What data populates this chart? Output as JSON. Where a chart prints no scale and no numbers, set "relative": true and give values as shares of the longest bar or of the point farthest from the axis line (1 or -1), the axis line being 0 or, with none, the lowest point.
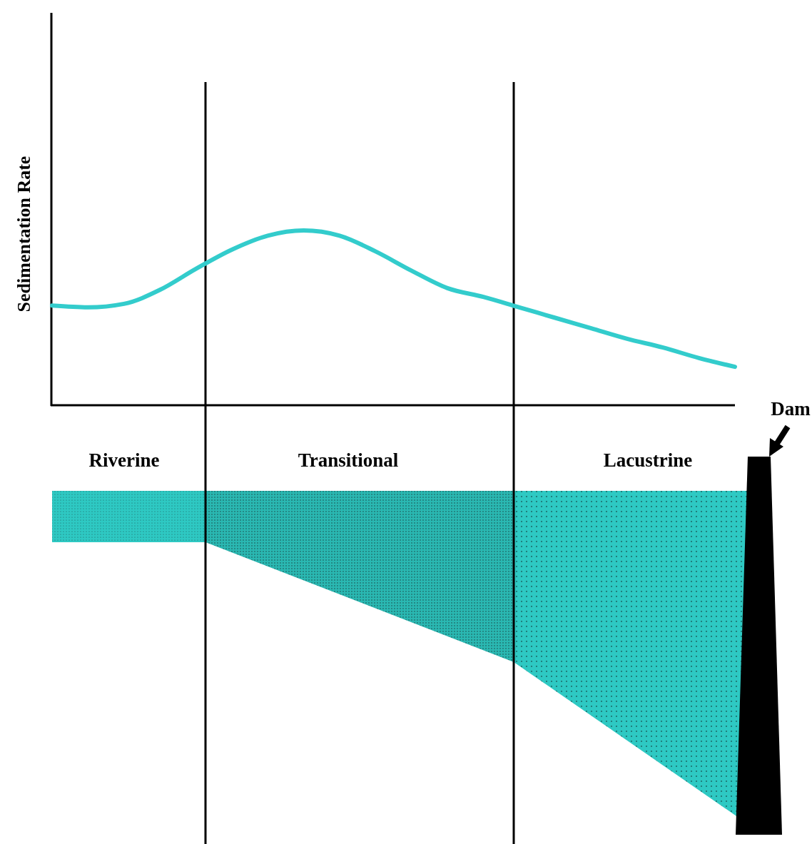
{
  "chart_data": {
    "type": "line",
    "relative": true,
    "ylabel": "Sedimentation Rate",
    "annotations": [
      "Riverine",
      "Transitional",
      "Lacustrine",
      "Dam"
    ],
    "categories": [
      null,
      null,
      null,
      null,
      null,
      null,
      null,
      null,
      null,
      null,
      null,
      null,
      null,
      null,
      null,
      null,
      null,
      null,
      null,
      null
    ],
    "series": [
      {
        "color": "#33cccc",
        "values": [
          0.57,
          0.56,
          0.58,
          0.66,
          0.78,
          0.89,
          0.97,
          1,
          0.97,
          0.88,
          0.77,
          0.67,
          0.62,
          0.56,
          0.5,
          0.44,
          0.38,
          0.33,
          0.27,
          0.22
        ]
      }
    ]
  }
}
